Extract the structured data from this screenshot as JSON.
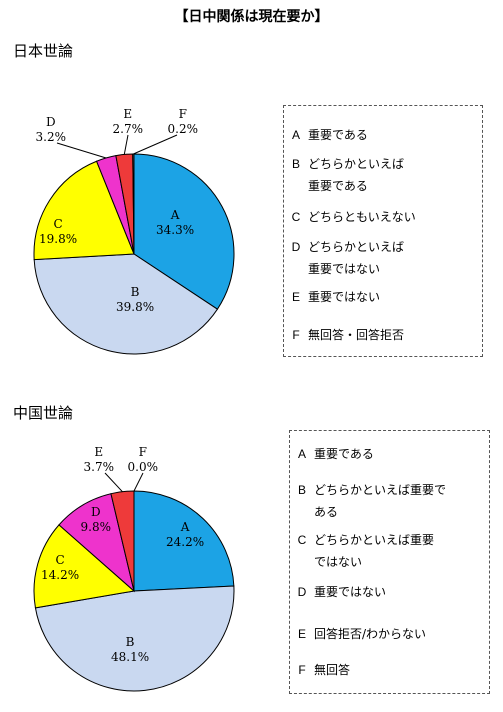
{
  "title": "【日中関係は現在要か】",
  "colors": {
    "A": "#1ca3e5",
    "B": "#c9d8f0",
    "C": "#ffff00",
    "D": "#ee33cc",
    "E": "#ee3a3a",
    "F": "#888888"
  },
  "japan": {
    "section_title": "日本世論",
    "legend": [
      {
        "key": "A",
        "text": "重要である"
      },
      {
        "key": "B",
        "text": "どちらかといえば\n重要である"
      },
      {
        "key": "C",
        "text": "どちらともいえない"
      },
      {
        "key": "D",
        "text": "どちらかといえば\n重要ではない"
      },
      {
        "key": "E",
        "text": "重要ではない"
      },
      {
        "key": "F",
        "text": "無回答・回答拒否"
      }
    ]
  },
  "china": {
    "section_title": "中国世論",
    "legend": [
      {
        "key": "A",
        "text": "重要である"
      },
      {
        "key": "B",
        "text": "どちらかといえば重要で\nある"
      },
      {
        "key": "C",
        "text": "どちらかといえば重要\nではない"
      },
      {
        "key": "D",
        "text": "重要ではない"
      },
      {
        "key": "E",
        "text": "回答拒否/わからない"
      },
      {
        "key": "F",
        "text": "無回答"
      }
    ]
  },
  "chart_data": [
    {
      "type": "pie",
      "title": "日本世論",
      "categories": [
        "A",
        "B",
        "C",
        "D",
        "E",
        "F"
      ],
      "values": [
        34.3,
        39.8,
        19.8,
        3.2,
        2.7,
        0.2
      ],
      "value_labels": [
        "34.3%",
        "39.8%",
        "19.8%",
        "3.2%",
        "2.7%",
        "0.2%"
      ]
    },
    {
      "type": "pie",
      "title": "中国世論",
      "categories": [
        "A",
        "B",
        "C",
        "D",
        "E",
        "F"
      ],
      "values": [
        24.2,
        48.1,
        14.2,
        9.8,
        3.7,
        0.0
      ],
      "value_labels": [
        "24.2%",
        "48.1%",
        "14.2%",
        "9.8%",
        "3.7%",
        "0.0%"
      ]
    }
  ]
}
